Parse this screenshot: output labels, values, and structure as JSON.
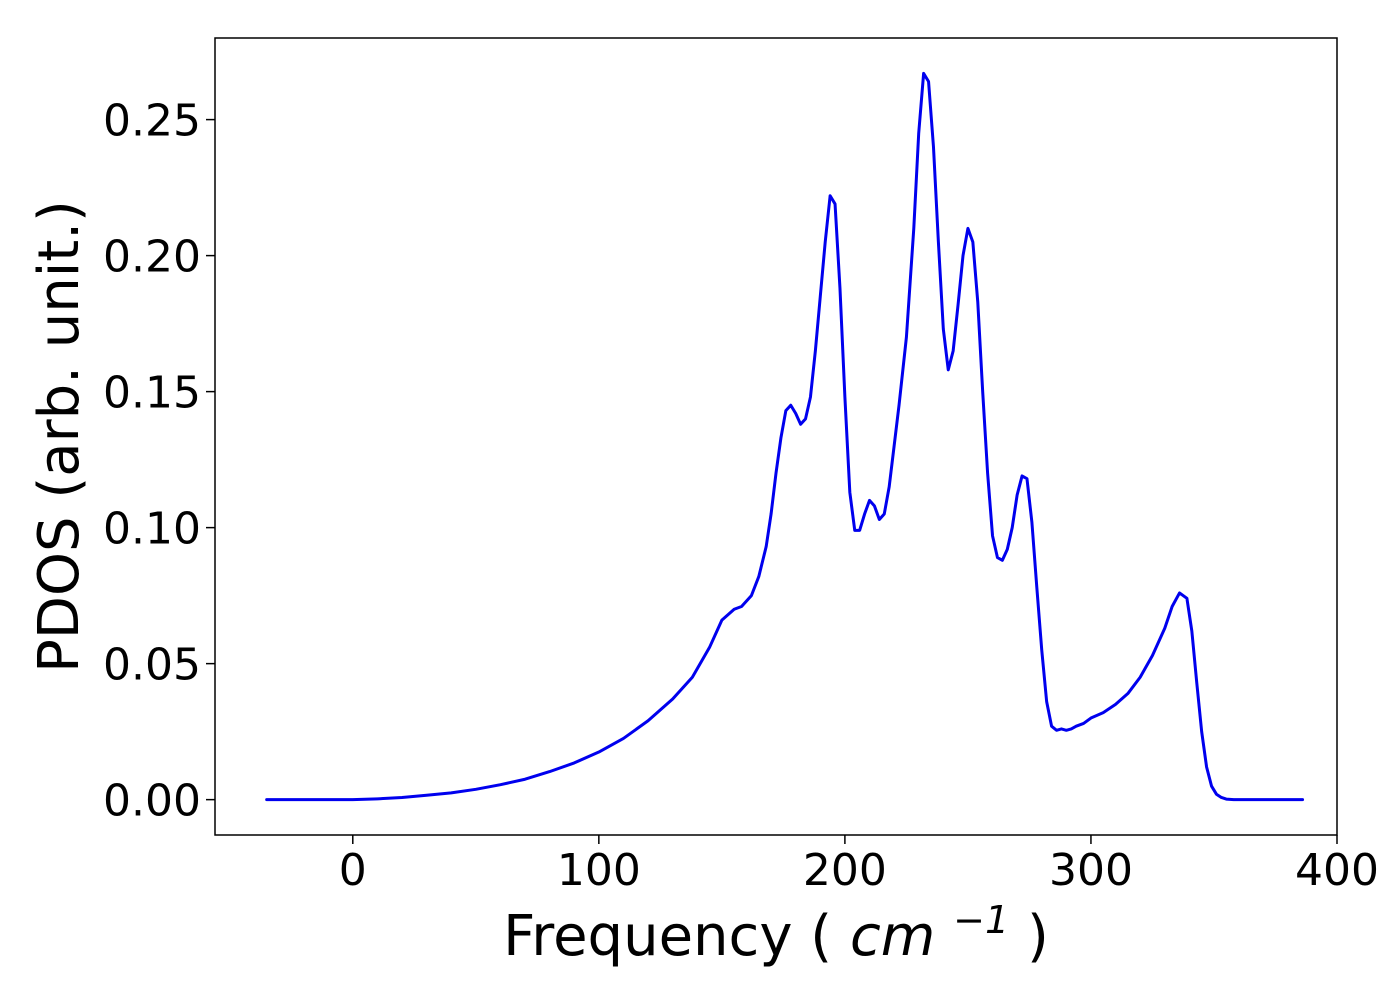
{
  "chart_data": {
    "type": "line",
    "title": "",
    "xlabel": "Frequency",
    "xlabel_unit": "cm",
    "xlabel_unit_exp": "−1",
    "ylabel": "PDOS (arb. unit.)",
    "xlim": [
      -56,
      400
    ],
    "ylim": [
      -0.013,
      0.28
    ],
    "xticks": [
      0,
      100,
      200,
      300,
      400
    ],
    "yticks": [
      0.0,
      0.05,
      0.1,
      0.15,
      0.2,
      0.25
    ],
    "xtick_labels": [
      "0",
      "100",
      "200",
      "300",
      "400"
    ],
    "ytick_labels": [
      "0.00",
      "0.05",
      "0.10",
      "0.15",
      "0.20",
      "0.25"
    ],
    "grid": false,
    "line_color": "#0000ee",
    "series": [
      {
        "x": [
          -35,
          -20,
          0,
          10,
          20,
          30,
          40,
          50,
          60,
          70,
          80,
          90,
          100,
          110,
          120,
          130,
          138,
          145,
          150,
          155,
          158,
          162,
          165,
          168,
          170,
          172,
          174,
          176,
          178,
          180,
          182,
          184,
          186,
          188,
          190,
          192,
          194,
          196,
          198,
          200,
          202,
          204,
          206,
          208,
          210,
          212,
          214,
          216,
          218,
          220,
          222,
          225,
          228,
          230,
          232,
          234,
          236,
          238,
          240,
          242,
          244,
          246,
          248,
          250,
          252,
          254,
          256,
          258,
          260,
          262,
          264,
          266,
          268,
          270,
          272,
          274,
          276,
          278,
          280,
          282,
          284,
          286,
          288,
          290,
          292,
          294,
          297,
          300,
          305,
          310,
          315,
          320,
          325,
          330,
          333,
          336,
          339,
          341,
          343,
          345,
          347,
          349,
          351,
          353,
          355,
          358,
          362,
          370,
          386
        ],
        "y": [
          0.0,
          0.0,
          0.0,
          0.0003,
          0.0008,
          0.0016,
          0.0025,
          0.0038,
          0.0055,
          0.0075,
          0.0103,
          0.0135,
          0.0175,
          0.0225,
          0.029,
          0.037,
          0.045,
          0.056,
          0.066,
          0.07,
          0.071,
          0.075,
          0.082,
          0.093,
          0.105,
          0.12,
          0.133,
          0.143,
          0.145,
          0.142,
          0.138,
          0.14,
          0.148,
          0.165,
          0.185,
          0.205,
          0.222,
          0.219,
          0.188,
          0.148,
          0.113,
          0.099,
          0.099,
          0.105,
          0.11,
          0.108,
          0.103,
          0.105,
          0.115,
          0.13,
          0.145,
          0.17,
          0.21,
          0.245,
          0.267,
          0.264,
          0.24,
          0.205,
          0.173,
          0.158,
          0.165,
          0.182,
          0.2,
          0.21,
          0.205,
          0.183,
          0.15,
          0.12,
          0.097,
          0.089,
          0.088,
          0.092,
          0.1,
          0.112,
          0.119,
          0.118,
          0.102,
          0.078,
          0.055,
          0.036,
          0.027,
          0.0255,
          0.026,
          0.0255,
          0.026,
          0.027,
          0.028,
          0.03,
          0.032,
          0.035,
          0.039,
          0.045,
          0.053,
          0.063,
          0.071,
          0.076,
          0.074,
          0.062,
          0.043,
          0.025,
          0.012,
          0.005,
          0.002,
          0.0008,
          0.0002,
          0.0,
          0.0,
          0.0,
          0.0
        ]
      }
    ]
  }
}
